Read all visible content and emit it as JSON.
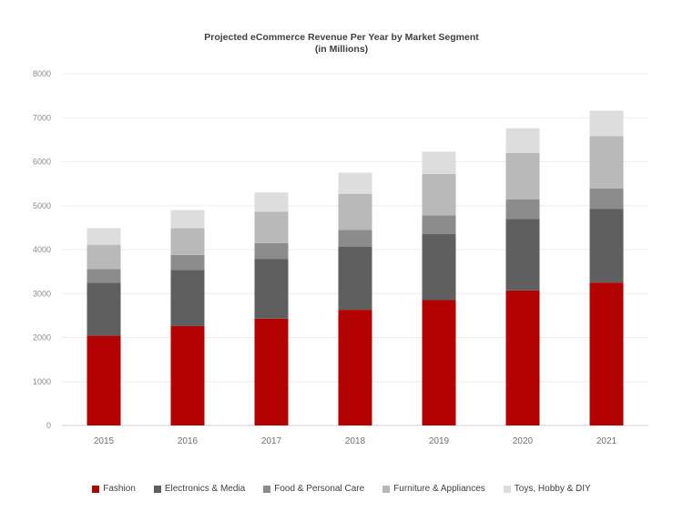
{
  "chart_data": {
    "type": "bar",
    "stacked": true,
    "title": "Projected eCommerce Revenue Per Year by Market Segment",
    "subtitle": "(in Millions)",
    "categories": [
      "2015",
      "2016",
      "2017",
      "2018",
      "2019",
      "2020",
      "2021"
    ],
    "ylim": [
      0,
      8000
    ],
    "yticks": [
      0,
      1000,
      2000,
      3000,
      4000,
      5000,
      6000,
      7000,
      8000
    ],
    "grid": true,
    "legend_position": "bottom",
    "series": [
      {
        "name": "Fashion",
        "color": "#b30000",
        "values": [
          2040,
          2260,
          2430,
          2630,
          2850,
          3070,
          3250
        ]
      },
      {
        "name": "Electronics & Media",
        "color": "#5f5f5f",
        "values": [
          1210,
          1280,
          1360,
          1440,
          1510,
          1630,
          1680
        ]
      },
      {
        "name": "Food & Personal Care",
        "color": "#8c8c8c",
        "values": [
          310,
          340,
          360,
          380,
          420,
          440,
          460
        ]
      },
      {
        "name": "Furniture & Appliances",
        "color": "#b9b9b9",
        "values": [
          550,
          610,
          710,
          820,
          940,
          1060,
          1190
        ]
      },
      {
        "name": "Toys, Hobby & DIY",
        "color": "#dddddd",
        "values": [
          380,
          410,
          440,
          480,
          510,
          560,
          580
        ]
      }
    ]
  }
}
